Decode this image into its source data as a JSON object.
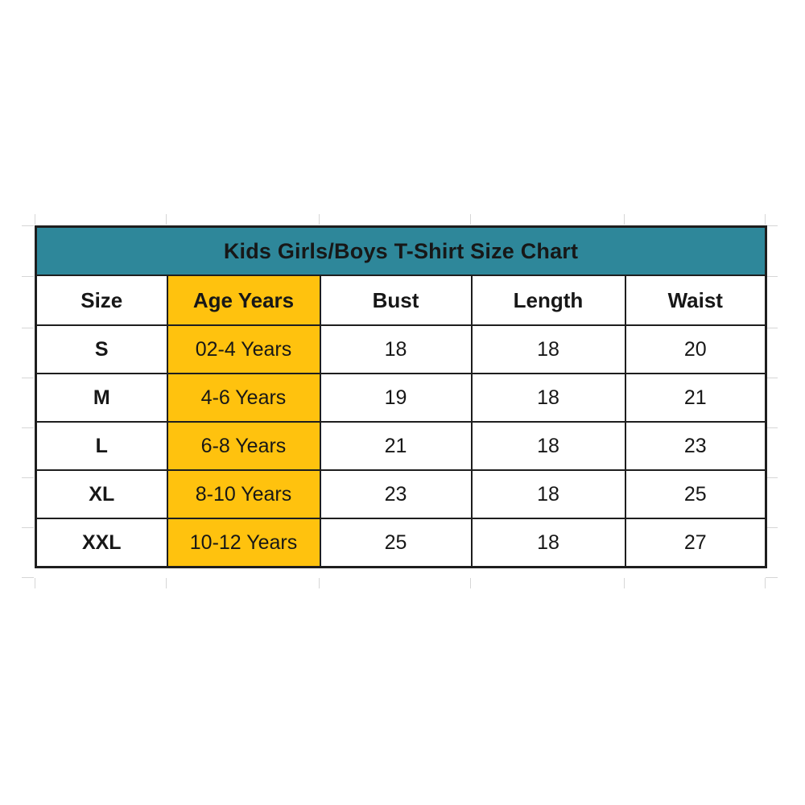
{
  "title": "Kids Girls/Boys T-Shirt Size Chart",
  "header": {
    "size": "Size",
    "age": "Age Years",
    "bust": "Bust",
    "length": "Length",
    "waist": "Waist"
  },
  "rows": [
    {
      "size": "S",
      "age": "02-4 Years",
      "bust": "18",
      "length": "18",
      "waist": "20"
    },
    {
      "size": "M",
      "age": "4-6 Years",
      "bust": "19",
      "length": "18",
      "waist": "21"
    },
    {
      "size": "L",
      "age": "6-8 Years",
      "bust": "21",
      "length": "18",
      "waist": "23"
    },
    {
      "size": "XL",
      "age": "8-10 Years",
      "bust": "23",
      "length": "18",
      "waist": "25"
    },
    {
      "size": "XXL",
      "age": "10-12 Years",
      "bust": "25",
      "length": "18",
      "waist": "27"
    }
  ],
  "colors": {
    "title_bg": "#2E879A",
    "title_text": "#FFFFFF",
    "highlight_bg": "#FFC20E",
    "cell_bg": "#FFFFFF",
    "border": "#1E1E1E",
    "text": "#171717",
    "gridline": "#D6D6D6"
  },
  "chart_data": {
    "type": "table",
    "title": "Kids Girls/Boys T-Shirt Size Chart",
    "columns": [
      "Size",
      "Age Years",
      "Bust",
      "Length",
      "Waist"
    ],
    "rows": [
      [
        "S",
        "02-4 Years",
        18,
        18,
        20
      ],
      [
        "M",
        "4-6 Years",
        19,
        18,
        21
      ],
      [
        "L",
        "6-8 Years",
        21,
        18,
        23
      ],
      [
        "XL",
        "8-10 Years",
        23,
        18,
        25
      ],
      [
        "XXL",
        "10-12 Years",
        25,
        18,
        27
      ]
    ],
    "notes": "Highlighted column: Age Years (yellow). Title row background teal. Length is 18 for all sizes."
  }
}
